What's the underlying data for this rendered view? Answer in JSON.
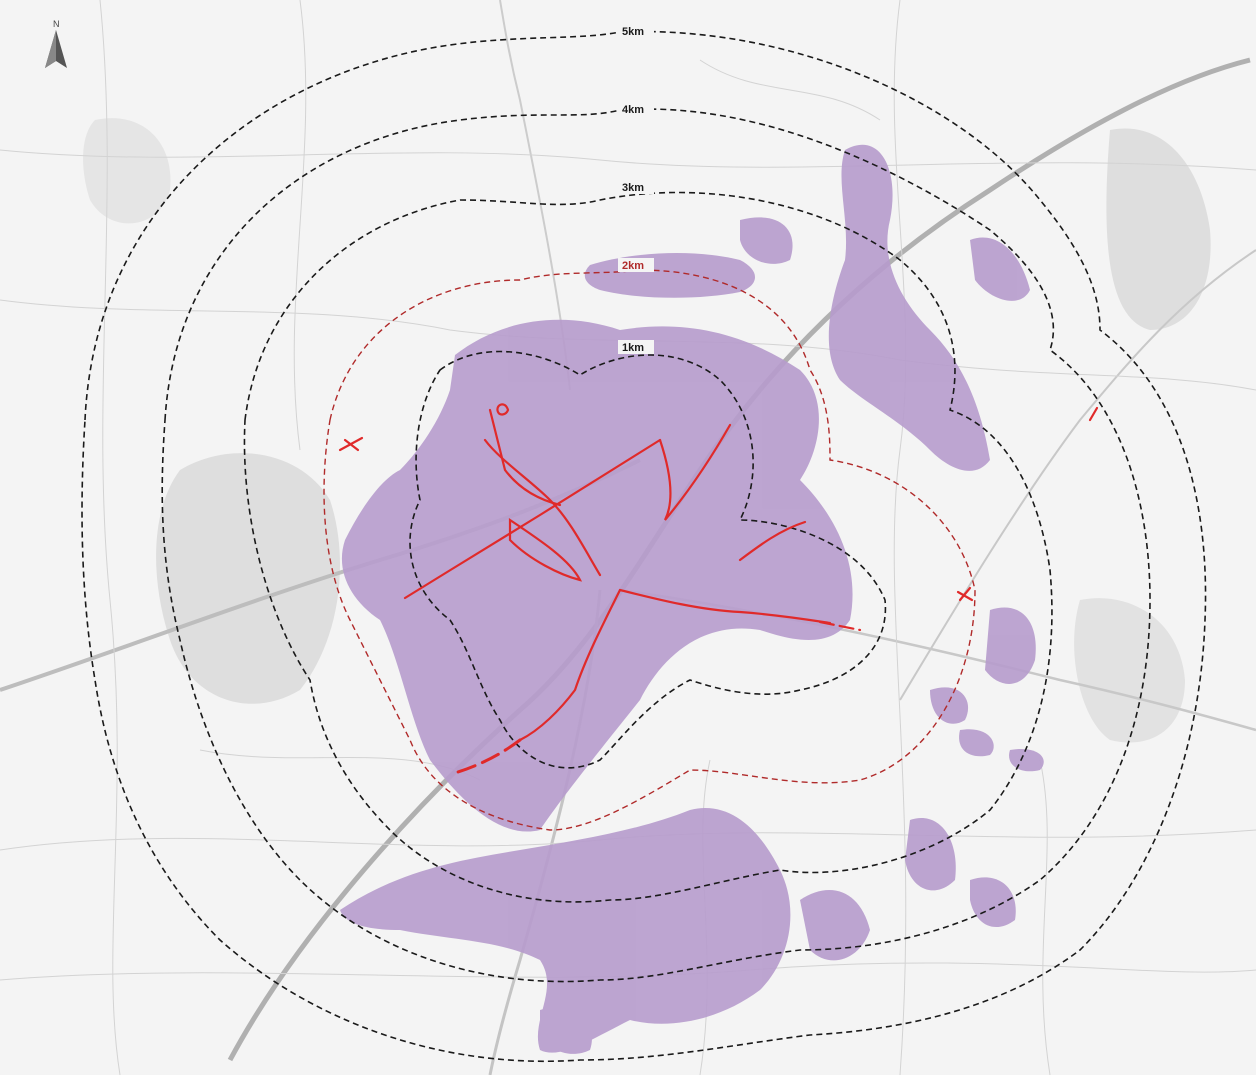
{
  "map": {
    "north_arrow": {
      "label": "N",
      "icon": "north-arrow-icon"
    },
    "rings": [
      {
        "label": "1km",
        "color": "#1a1a1a"
      },
      {
        "label": "2km",
        "color": "#b02a2a"
      },
      {
        "label": "3km",
        "color": "#1a1a1a"
      },
      {
        "label": "4km",
        "color": "#1a1a1a"
      },
      {
        "label": "5km",
        "color": "#1a1a1a"
      }
    ],
    "colors": {
      "visibility_fill": "#b79ccd",
      "route": "#e02a2a",
      "basemap_roads": "#c9c9c9",
      "motorway": "#a8a8a8",
      "settlement": "#dcdcdc"
    }
  }
}
